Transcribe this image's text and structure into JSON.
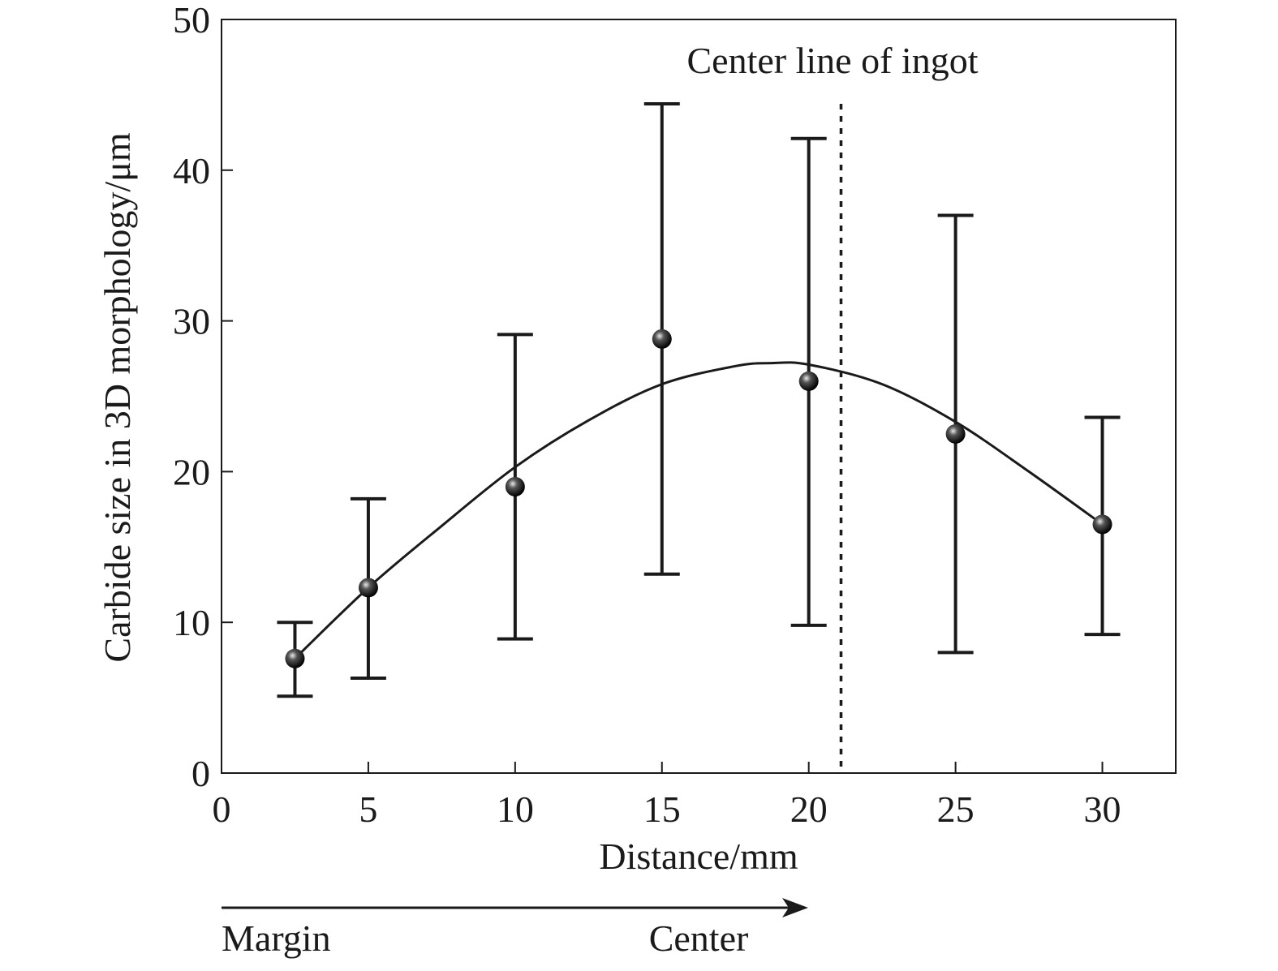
{
  "chart_data": {
    "type": "scatter",
    "xlabel": "Distance/mm",
    "ylabel": "Carbide size in 3D morphology/μm",
    "xlim": [
      0,
      32.5
    ],
    "ylim": [
      0,
      50
    ],
    "x_ticks": [
      "0",
      "5",
      "10",
      "15",
      "20",
      "25",
      "30"
    ],
    "y_ticks": [
      "0",
      "10",
      "20",
      "30",
      "40",
      "50"
    ],
    "grid": false,
    "series": [
      {
        "points": [
          {
            "x": 2.5,
            "y": 7.6,
            "err_low": 5.1,
            "err_high": 10.0
          },
          {
            "x": 5,
            "y": 12.3,
            "err_low": 6.3,
            "err_high": 18.2
          },
          {
            "x": 10,
            "y": 19.0,
            "err_low": 8.9,
            "err_high": 29.1
          },
          {
            "x": 15,
            "y": 28.8,
            "err_low": 13.2,
            "err_high": 44.4
          },
          {
            "x": 20,
            "y": 26.0,
            "err_low": 9.8,
            "err_high": 42.1
          },
          {
            "x": 25,
            "y": 22.5,
            "err_low": 8.0,
            "err_high": 37.0
          },
          {
            "x": 30,
            "y": 16.5,
            "err_low": 9.2,
            "err_high": 23.6
          }
        ]
      }
    ],
    "fit_curve": {
      "type": "polynomial",
      "x_range": [
        2.5,
        30
      ],
      "samples": [
        {
          "x": 2.5,
          "y": 7.6
        },
        {
          "x": 5,
          "y": 12.3
        },
        {
          "x": 7.5,
          "y": 16.4
        },
        {
          "x": 10,
          "y": 20.3
        },
        {
          "x": 12.5,
          "y": 23.4
        },
        {
          "x": 15,
          "y": 25.8
        },
        {
          "x": 17.5,
          "y": 27.0
        },
        {
          "x": 18.7,
          "y": 27.2
        },
        {
          "x": 20,
          "y": 27.1
        },
        {
          "x": 22.5,
          "y": 25.8
        },
        {
          "x": 25,
          "y": 23.3
        },
        {
          "x": 27.5,
          "y": 20.0
        },
        {
          "x": 30,
          "y": 16.5
        }
      ]
    },
    "reference_line": {
      "x": 21.1,
      "style": "dotted",
      "label": "Center line of ingot"
    },
    "direction_arrow": {
      "from_label": "Margin",
      "to_label": "Center"
    }
  }
}
